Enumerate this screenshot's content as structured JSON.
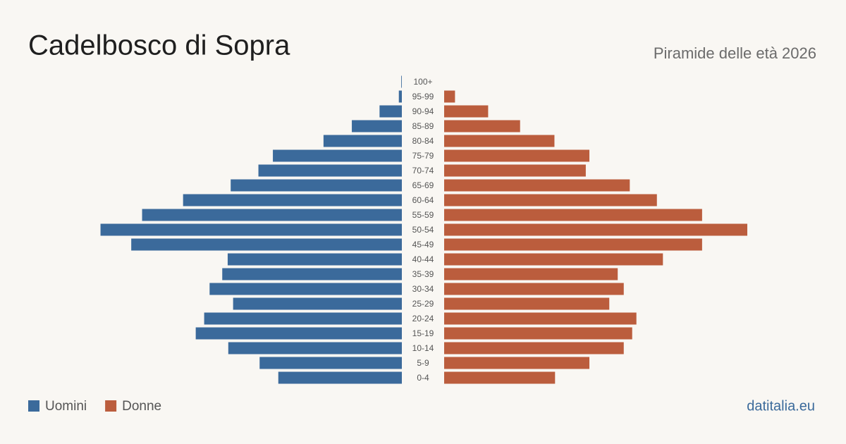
{
  "chart_data": {
    "type": "pyramid",
    "title": "Cadelbosco di Sopra",
    "subtitle": "Piramide delle età 2026",
    "categories": [
      "100+",
      "95-99",
      "90-94",
      "85-89",
      "80-84",
      "75-79",
      "70-74",
      "65-69",
      "60-64",
      "55-59",
      "50-54",
      "45-49",
      "40-44",
      "35-39",
      "30-34",
      "25-29",
      "20-24",
      "15-19",
      "10-14",
      "5-9",
      "0-4"
    ],
    "series": [
      {
        "name": "Uomini",
        "color": "#3b6a9b",
        "values": [
          1,
          5,
          37,
          83,
          130,
          214,
          238,
          284,
          363,
          431,
          500,
          449,
          289,
          298,
          319,
          280,
          328,
          342,
          288,
          236,
          205
        ]
      },
      {
        "name": "Donne",
        "color": "#bb5d3d",
        "values": [
          0,
          18,
          73,
          126,
          183,
          241,
          235,
          308,
          353,
          428,
          503,
          428,
          363,
          288,
          298,
          274,
          319,
          312,
          298,
          241,
          184
        ]
      }
    ],
    "source": "datitalia.eu"
  }
}
